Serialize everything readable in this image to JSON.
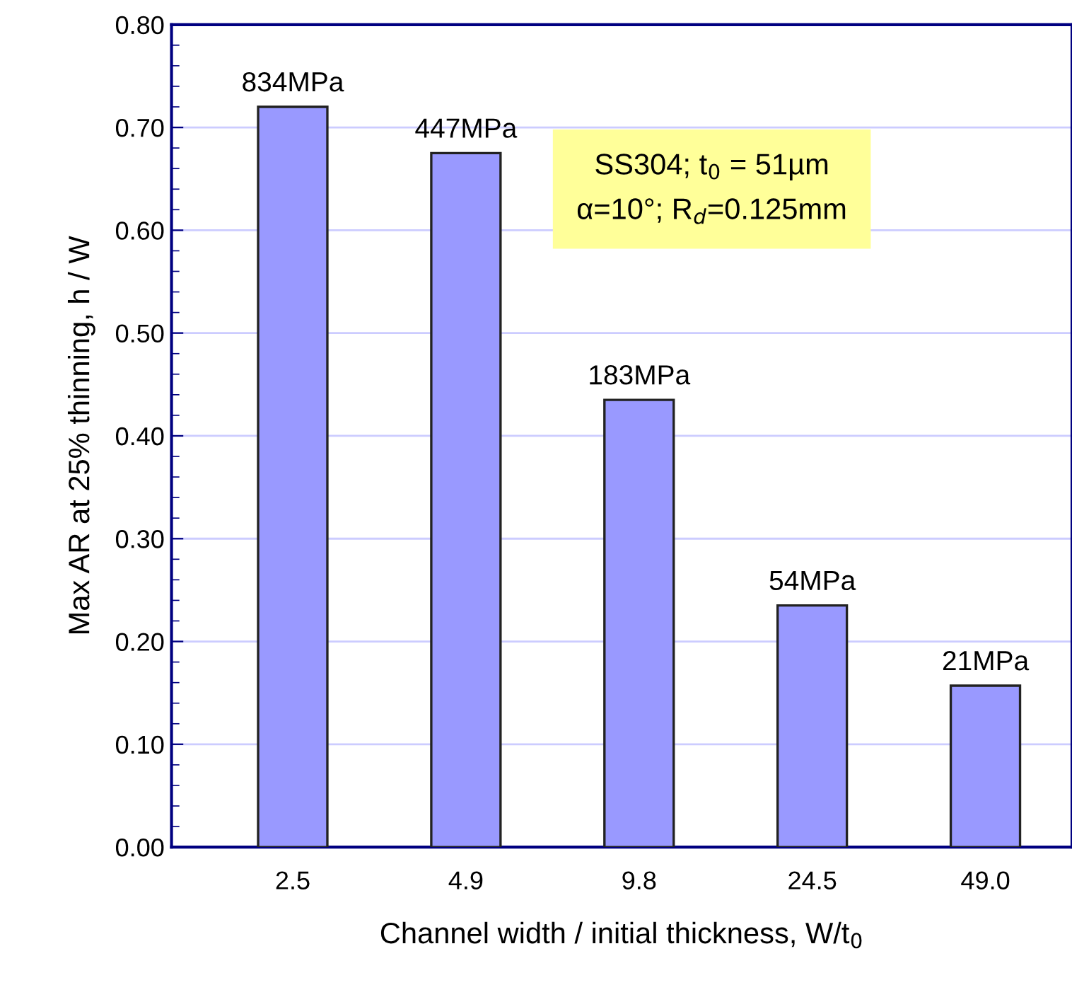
{
  "chart_data": {
    "type": "bar",
    "xlabel": "Channel width / initial thickness, W/t$_{0}$",
    "ylabel": "Max AR at 25% thinning, h / W",
    "categories": [
      "2.5",
      "4.9",
      "9.8",
      "24.5",
      "49.0"
    ],
    "values": [
      0.72,
      0.675,
      0.435,
      0.235,
      0.157
    ],
    "color": "#9999ff",
    "ylim": [
      0,
      0.8
    ],
    "yticks": [
      {
        "value": 0,
        "label": "0.00"
      },
      {
        "value": 0.1,
        "label": "0.10"
      },
      {
        "value": 0.2,
        "label": "0.20"
      },
      {
        "value": 0.3,
        "label": "0.30"
      },
      {
        "value": 0.4,
        "label": "0.40"
      },
      {
        "value": 0.5,
        "label": "0.50"
      },
      {
        "value": 0.6,
        "label": "0.60"
      },
      {
        "value": 0.7,
        "label": "0.70"
      },
      {
        "value": 0.8,
        "label": "0.80"
      }
    ],
    "grid": "y",
    "annotations": [
      {
        "text": "834MPa",
        "x": "2.5",
        "y": 0.72
      },
      {
        "text": "447MPa",
        "x": "4.9",
        "y": 0.675
      },
      {
        "text": "183MPa",
        "x": "9.8",
        "y": 0.435
      },
      {
        "text": "54MPa",
        "x": "24.5",
        "y": 0.235
      },
      {
        "text": "21MPa",
        "x": "49.0",
        "y": 0.157
      },
      "SS304; t$_{0}$ = 51µm\nα=10°; R$_{d}$=0.125mm"
    ]
  }
}
